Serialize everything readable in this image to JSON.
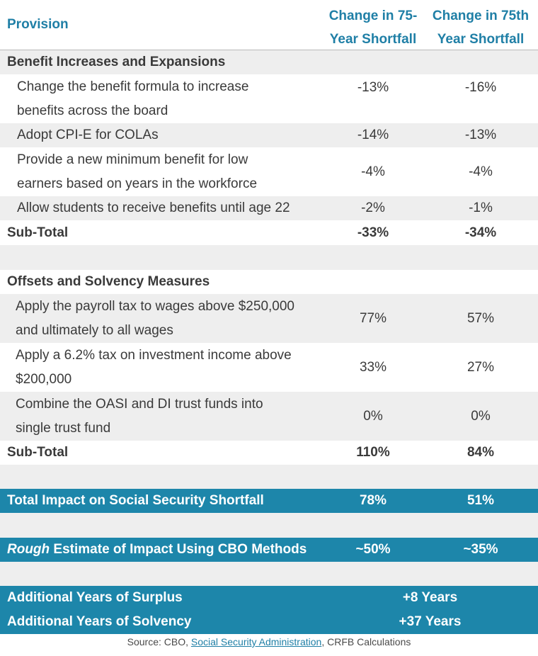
{
  "header": {
    "provision": "Provision",
    "col1_line1": "Change in 75-",
    "col1_line2": "Year Shortfall",
    "col2_line1": "Change in 75th",
    "col2_line2": "Year Shortfall"
  },
  "section1": {
    "title": "Benefit Increases and Expansions",
    "rows": [
      {
        "label_line1": "Change the benefit formula to increase",
        "label_line2": "benefits across the board",
        "v1": "-13%",
        "v2": "-16%"
      },
      {
        "label_line1": "Adopt CPI-E for COLAs",
        "v1": "-14%",
        "v2": "-13%"
      },
      {
        "label_line1": "Provide a new minimum benefit for low",
        "label_line2": "earners based on years in the workforce",
        "v1": "-4%",
        "v2": "-4%"
      },
      {
        "label_line1": "Allow students to receive benefits until age 22",
        "v1": "-2%",
        "v2": "-1%"
      }
    ],
    "subtotal": {
      "label": "Sub-Total",
      "v1": "-33%",
      "v2": "-34%"
    }
  },
  "section2": {
    "title": "Offsets and Solvency Measures",
    "rows": [
      {
        "label_line1": "Apply the payroll tax to wages above $250,000",
        "label_line2": "and ultimately to all wages",
        "v1": "77%",
        "v2": "57%"
      },
      {
        "label_line1": "Apply a 6.2% tax on investment income above",
        "label_line2": "$200,000",
        "v1": "33%",
        "v2": "27%"
      },
      {
        "label_line1": "Combine the OASI and DI trust funds into",
        "label_line2": "single trust fund",
        "v1": "0%",
        "v2": "0%"
      }
    ],
    "subtotal": {
      "label": "Sub-Total",
      "v1": "110%",
      "v2": "84%"
    }
  },
  "total": {
    "label": "Total Impact on Social Security Shortfall",
    "v1": "78%",
    "v2": "51%"
  },
  "rough": {
    "label_em": "Rough",
    "label_rest": " Estimate of Impact Using CBO Methods",
    "v1": "~50%",
    "v2": "~35%"
  },
  "surplus": {
    "label": "Additional Years of Surplus",
    "value": "+8 Years"
  },
  "solvency": {
    "label": "Additional Years of Solvency",
    "value": "+37 Years"
  },
  "source": {
    "prefix": "Source: CBO, ",
    "link": "Social Security Administration",
    "suffix": ", CRFB Calculations"
  },
  "colors": {
    "accent": "#1f7fa6",
    "band": "#1d86aa",
    "shade": "#eeeeee"
  }
}
